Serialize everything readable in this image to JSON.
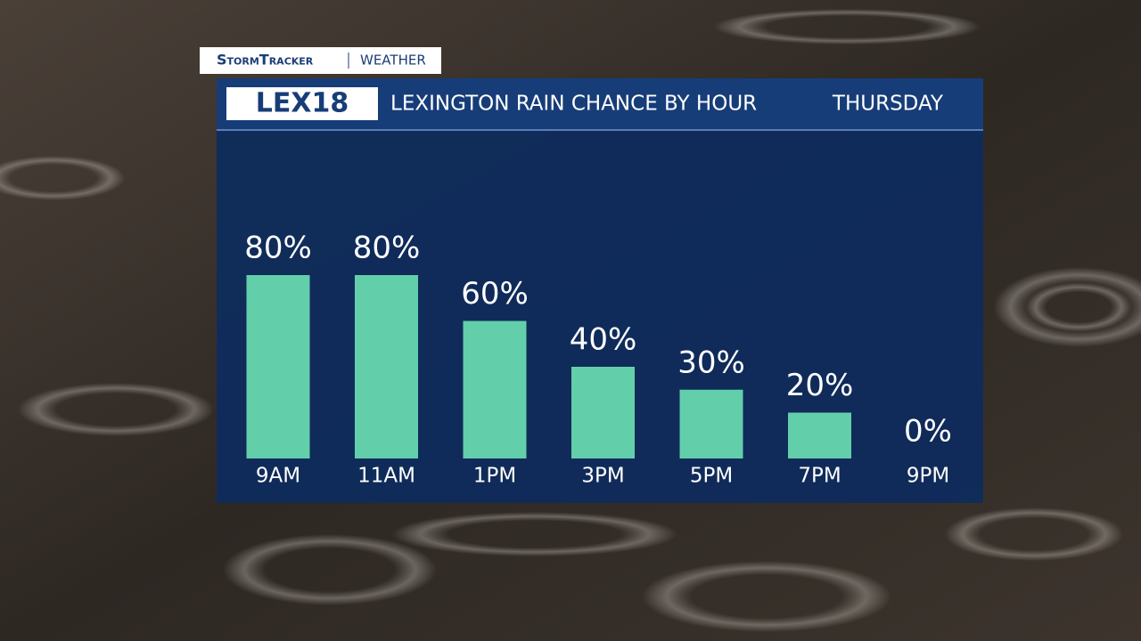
{
  "branding": {
    "brand": "StormTracker",
    "section": "WEATHER",
    "logo": "LEX18"
  },
  "chart_data": {
    "type": "bar",
    "title": "LEXINGTON RAIN CHANCE BY HOUR",
    "subtitle": "THURSDAY",
    "categories": [
      "9AM",
      "11AM",
      "1PM",
      "3PM",
      "5PM",
      "7PM",
      "9PM"
    ],
    "values": [
      80,
      80,
      60,
      40,
      30,
      20,
      0
    ],
    "value_labels": [
      "80%",
      "80%",
      "60%",
      "40%",
      "30%",
      "20%",
      "0%"
    ],
    "color": "#62cfaa"
  }
}
